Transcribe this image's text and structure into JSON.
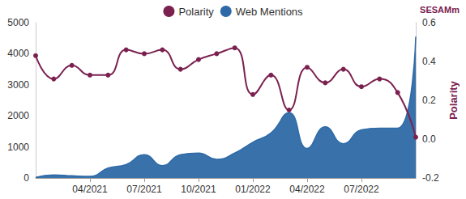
{
  "chart_data": {
    "type": "line",
    "categories": [
      null,
      null,
      null,
      "04/2021",
      null,
      null,
      "07/2021",
      null,
      null,
      "10/2021",
      null,
      null,
      "01/2022",
      null,
      null,
      "04/2022",
      null,
      null,
      "07/2022",
      null,
      null,
      null
    ],
    "series": [
      {
        "name": "Polarity",
        "color": "#7b2150",
        "axis": "y2",
        "type": "line",
        "marker": "circle",
        "values": [
          0.43,
          0.31,
          0.38,
          0.33,
          0.33,
          0.46,
          0.44,
          0.46,
          0.36,
          0.41,
          0.44,
          0.47,
          0.23,
          0.33,
          0.15,
          0.37,
          0.29,
          0.36,
          0.27,
          0.31,
          0.24,
          0.01
        ]
      },
      {
        "name": "Web Mentions",
        "color": "#2e6aa7",
        "type": "area",
        "values": [
          20,
          100,
          70,
          50,
          320,
          430,
          750,
          400,
          750,
          800,
          600,
          800,
          1150,
          1450,
          2100,
          950,
          1650,
          1100,
          1550,
          1600,
          1600,
          4550
        ]
      }
    ],
    "ylim": [
      0,
      5000
    ],
    "yticks": [
      0,
      1000,
      2000,
      3000,
      4000,
      5000
    ],
    "y2lim": [
      -0.2,
      0.6
    ],
    "y2ticks": [
      -0.2,
      {
        "value": 0,
        "label": "0.0"
      },
      0.2,
      0.4,
      0.6
    ],
    "y2_label": "Polarity",
    "annotations": [
      "SESAMm"
    ],
    "legend": "top",
    "grid": false
  }
}
